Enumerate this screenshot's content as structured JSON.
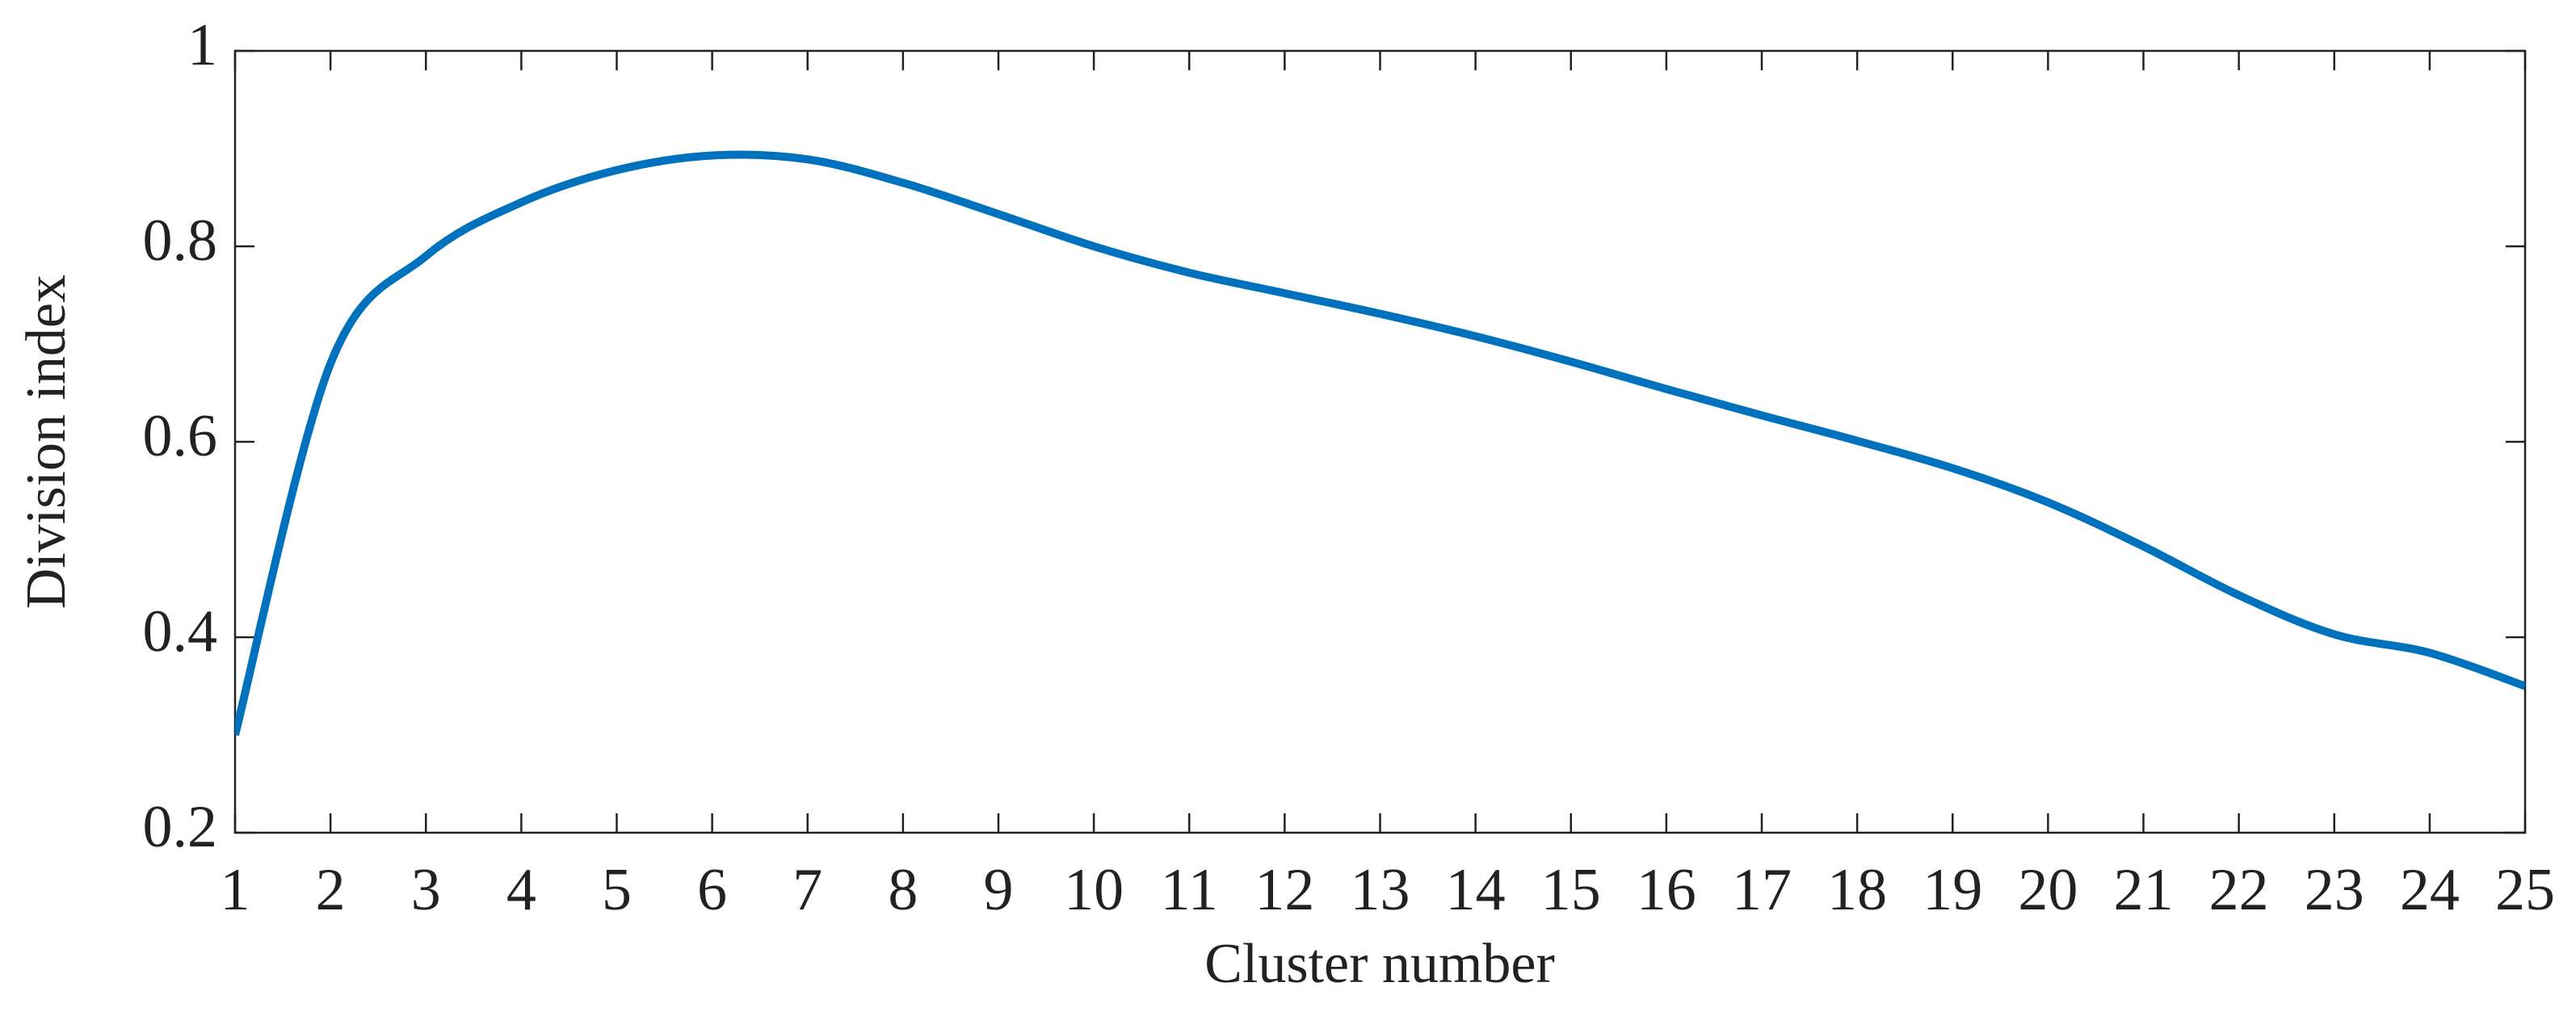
{
  "chart_data": {
    "type": "line",
    "x_label": "Cluster number",
    "y_label": "Division index",
    "x": [
      1,
      2,
      3,
      4,
      5,
      6,
      7,
      8,
      9,
      10,
      11,
      12,
      13,
      14,
      15,
      16,
      17,
      18,
      19,
      20,
      21,
      22,
      23,
      24,
      25
    ],
    "series": [
      {
        "name": "Division index",
        "color": "#0072bd",
        "values": [
          0.3,
          0.68,
          0.79,
          0.845,
          0.878,
          0.893,
          0.889,
          0.865,
          0.833,
          0.8,
          0.773,
          0.752,
          0.731,
          0.708,
          0.682,
          0.654,
          0.627,
          0.601,
          0.573,
          0.538,
          0.493,
          0.443,
          0.403,
          0.384,
          0.35
        ]
      }
    ],
    "xlim": [
      1,
      25
    ],
    "ylim": [
      0.2,
      1
    ],
    "xticks": [
      1,
      2,
      3,
      4,
      5,
      6,
      7,
      8,
      9,
      10,
      11,
      12,
      13,
      14,
      15,
      16,
      17,
      18,
      19,
      20,
      21,
      22,
      23,
      24,
      25
    ],
    "yticks": [
      0.2,
      0.4,
      0.6,
      0.8,
      1
    ],
    "grid": false
  }
}
